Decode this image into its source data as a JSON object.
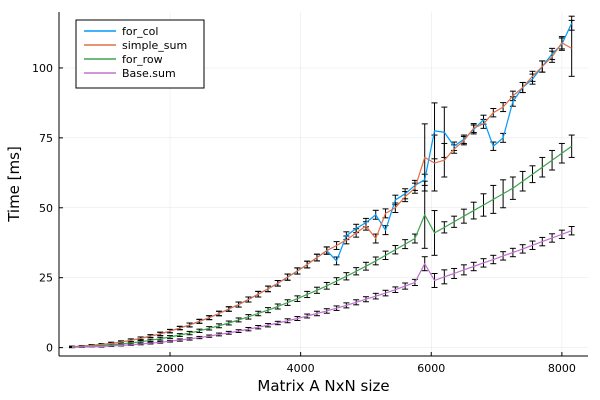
{
  "chart_data": {
    "type": "line",
    "title": "",
    "xlabel": "Matrix A NxN size",
    "ylabel": "Time [ms]",
    "xlim": [
      300,
      8400
    ],
    "ylim": [
      -3,
      120
    ],
    "xticks": [
      2000,
      4000,
      6000,
      8000
    ],
    "yticks": [
      0,
      25,
      50,
      75,
      100
    ],
    "xtick_labels": [
      "2000",
      "4000",
      "6000",
      "8000"
    ],
    "ytick_labels": [
      "0",
      "25",
      "50",
      "75",
      "100"
    ],
    "grid": true,
    "legend_position": "top-left",
    "colors": {
      "for_col": "#009AFA",
      "simple_sum": "#E36F47",
      "for_row": "#3EA44E",
      "Base.sum": "#C371D2",
      "error_bars": "#000000"
    },
    "x": [
      500,
      650,
      800,
      950,
      1100,
      1250,
      1400,
      1550,
      1700,
      1850,
      2000,
      2150,
      2300,
      2450,
      2600,
      2750,
      2900,
      3050,
      3200,
      3350,
      3500,
      3650,
      3800,
      3950,
      4100,
      4250,
      4400,
      4550,
      4700,
      4850,
      5000,
      5150,
      5300,
      5450,
      5600,
      5750,
      5900,
      6050,
      6200,
      6350,
      6500,
      6650,
      6800,
      6950,
      7100,
      7250,
      7400,
      7550,
      7700,
      7850,
      8000,
      8150
    ],
    "series": [
      {
        "name": "for_col",
        "values": [
          0.3,
          0.5,
          0.8,
          1.1,
          1.5,
          2.0,
          2.6,
          3.3,
          4.1,
          4.9,
          5.9,
          7.0,
          8.1,
          9.4,
          10.7,
          12.2,
          13.8,
          15.4,
          17.2,
          19.1,
          21.0,
          23.0,
          25.2,
          27.4,
          29.7,
          32.2,
          34.7,
          31.0,
          40.0,
          42.6,
          44.7,
          47.5,
          42.0,
          52.8,
          55.0,
          58.0,
          60.0,
          77.5,
          77.0,
          72.0,
          74.5,
          78.0,
          81.5,
          72.0,
          75.0,
          88.0,
          93.0,
          96.0,
          100.5,
          105.0,
          108.5,
          116.0
        ],
        "err": [
          0.2,
          0.2,
          0.3,
          0.3,
          0.4,
          0.4,
          0.5,
          0.5,
          0.5,
          0.6,
          0.6,
          0.6,
          0.7,
          0.7,
          0.7,
          0.8,
          0.8,
          0.9,
          0.9,
          1.0,
          1.0,
          1.0,
          1.1,
          1.1,
          1.2,
          1.2,
          1.3,
          1.4,
          1.4,
          1.5,
          1.5,
          1.6,
          1.6,
          1.7,
          1.8,
          1.8,
          2.0,
          10.0,
          9.0,
          1.5,
          1.5,
          1.6,
          1.6,
          1.5,
          1.6,
          1.7,
          1.8,
          1.8,
          2.0,
          2.0,
          2.2,
          2.5
        ]
      },
      {
        "name": "simple_sum",
        "values": [
          0.3,
          0.5,
          0.8,
          1.1,
          1.5,
          2.0,
          2.6,
          3.3,
          4.1,
          4.9,
          5.9,
          7.0,
          8.1,
          9.4,
          10.7,
          12.2,
          13.8,
          15.4,
          17.2,
          19.1,
          21.0,
          23.0,
          25.2,
          27.4,
          29.7,
          32.2,
          34.7,
          36.5,
          38.5,
          41.0,
          43.5,
          39.0,
          48.0,
          50.0,
          54.0,
          57.0,
          68.0,
          66.0,
          67.0,
          71.0,
          74.0,
          78.5,
          80.0,
          84.0,
          86.0,
          90.0,
          93.0,
          97.0,
          100.5,
          104.0,
          109.0,
          107.0
        ],
        "err": [
          0.2,
          0.2,
          0.3,
          0.3,
          0.4,
          0.4,
          0.5,
          0.5,
          0.5,
          0.6,
          0.6,
          0.6,
          0.7,
          0.7,
          0.7,
          0.8,
          0.8,
          0.9,
          0.9,
          1.0,
          1.0,
          1.0,
          1.1,
          1.1,
          1.2,
          1.2,
          1.3,
          1.4,
          1.4,
          1.5,
          1.5,
          1.6,
          1.6,
          1.7,
          1.8,
          1.8,
          12.0,
          10.0,
          6.0,
          1.5,
          1.5,
          1.6,
          1.6,
          1.5,
          1.6,
          1.7,
          1.8,
          1.8,
          2.0,
          2.0,
          2.2,
          10.0
        ]
      },
      {
        "name": "for_row",
        "values": [
          0.2,
          0.3,
          0.5,
          0.7,
          1.0,
          1.3,
          1.7,
          2.1,
          2.6,
          3.2,
          3.8,
          4.5,
          5.2,
          6.0,
          6.9,
          7.8,
          8.8,
          9.9,
          11.0,
          12.2,
          13.4,
          14.7,
          16.1,
          17.5,
          19.0,
          20.5,
          22.1,
          23.8,
          25.5,
          27.3,
          29.1,
          31.0,
          33.0,
          35.0,
          37.0,
          39.0,
          47.5,
          41.0,
          43.0,
          45.0,
          47.0,
          49.0,
          51.0,
          53.0,
          55.0,
          57.0,
          59.5,
          62.0,
          64.5,
          67.0,
          69.5,
          72.0
        ],
        "err": [
          0.2,
          0.2,
          0.2,
          0.3,
          0.3,
          0.3,
          0.4,
          0.4,
          0.4,
          0.5,
          0.5,
          0.5,
          0.6,
          0.6,
          0.6,
          0.7,
          0.7,
          0.7,
          0.8,
          0.8,
          0.9,
          0.9,
          1.0,
          1.0,
          1.1,
          1.1,
          1.2,
          1.2,
          1.3,
          1.3,
          1.4,
          1.4,
          1.5,
          1.5,
          1.6,
          1.6,
          12.0,
          8.0,
          2.0,
          2.0,
          2.5,
          3.0,
          4.0,
          5.0,
          5.0,
          4.0,
          3.5,
          3.0,
          3.5,
          3.5,
          3.5,
          4.0
        ]
      },
      {
        "name": "Base.sum",
        "values": [
          0.1,
          0.2,
          0.3,
          0.4,
          0.6,
          0.8,
          1.0,
          1.3,
          1.6,
          1.9,
          2.3,
          2.7,
          3.1,
          3.6,
          4.1,
          4.7,
          5.3,
          5.9,
          6.6,
          7.3,
          8.0,
          8.8,
          9.6,
          10.4,
          11.3,
          12.2,
          13.1,
          14.1,
          15.1,
          16.2,
          17.3,
          18.4,
          19.5,
          20.7,
          22.0,
          23.3,
          30.0,
          24.0,
          25.3,
          26.5,
          27.8,
          29.0,
          30.3,
          31.5,
          32.8,
          34.0,
          35.3,
          36.6,
          37.9,
          39.2,
          40.5,
          41.8
        ],
        "err": [
          0.1,
          0.1,
          0.1,
          0.2,
          0.2,
          0.2,
          0.2,
          0.3,
          0.3,
          0.3,
          0.3,
          0.4,
          0.4,
          0.4,
          0.4,
          0.5,
          0.5,
          0.5,
          0.6,
          0.6,
          0.6,
          0.6,
          0.7,
          0.7,
          0.7,
          0.8,
          0.8,
          0.8,
          0.9,
          0.9,
          0.9,
          1.0,
          1.0,
          1.0,
          1.1,
          1.1,
          2.5,
          2.5,
          2.5,
          1.8,
          1.8,
          1.5,
          1.5,
          1.5,
          1.5,
          1.5,
          1.5,
          1.5,
          1.5,
          1.5,
          1.5,
          1.5
        ]
      }
    ]
  }
}
